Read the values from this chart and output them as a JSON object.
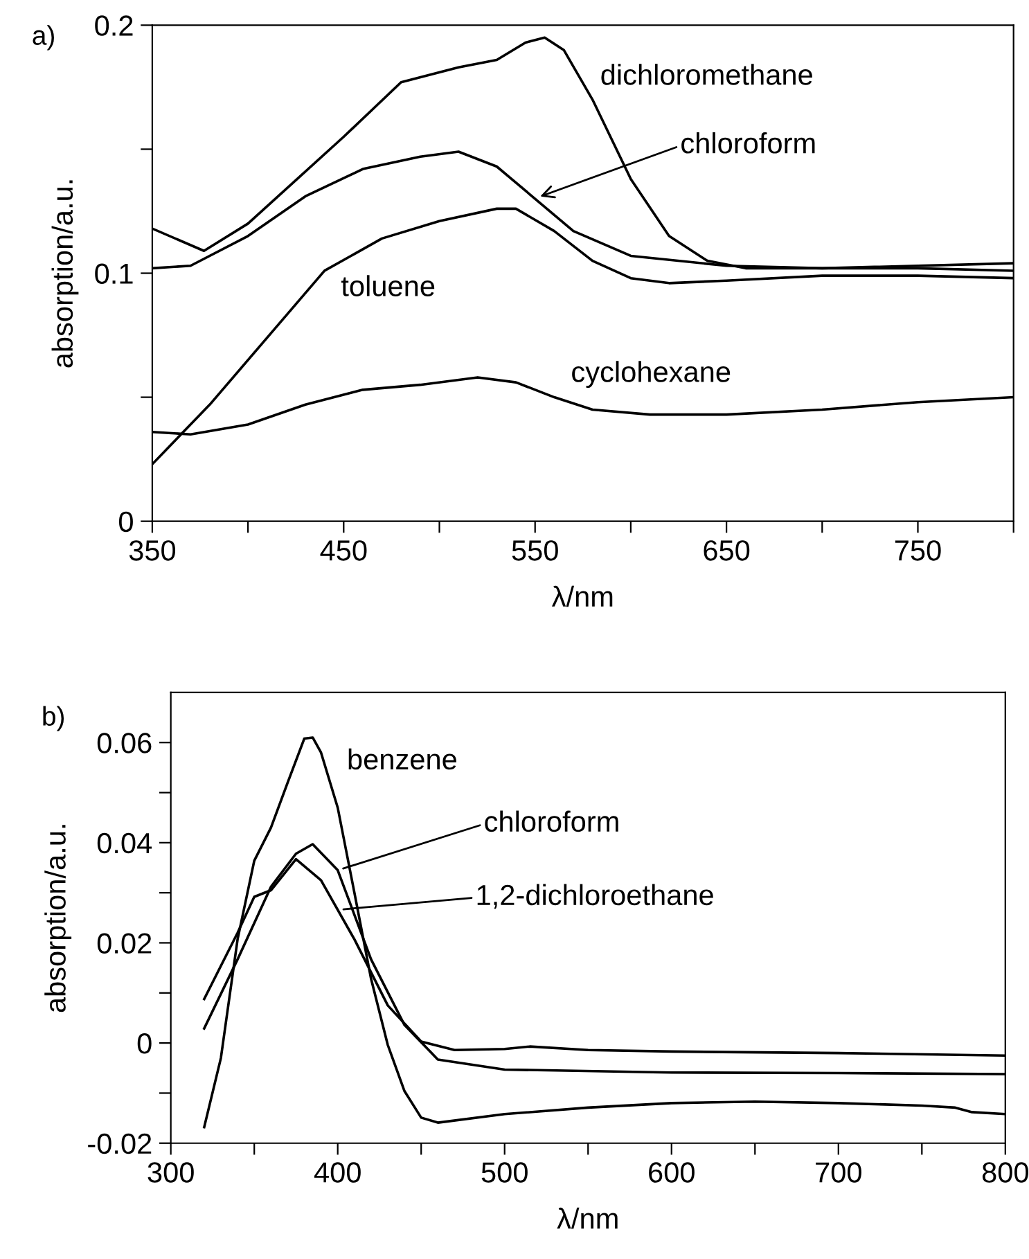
{
  "chart_data": [
    {
      "type": "line",
      "xlabel": "λ/nm",
      "ylabel": "absorption/a.u.",
      "xlim": [
        350,
        800
      ],
      "ylim": [
        0,
        0.2
      ],
      "xticks": [
        350,
        {
          "value": 400,
          "label": null
        },
        450,
        {
          "value": 500,
          "label": null
        },
        550,
        {
          "value": 600,
          "label": null
        },
        650,
        {
          "value": 700,
          "label": null
        },
        750,
        {
          "value": 800,
          "label": null
        }
      ],
      "yticks": [
        0,
        {
          "value": 0.05,
          "label": null
        },
        0.1,
        {
          "value": 0.15,
          "label": null
        },
        0.2
      ],
      "series": [
        {
          "name": "dichloromethane",
          "color": "#000000",
          "x": [
            350,
            377,
            400,
            450,
            480,
            510,
            530,
            545,
            555,
            565,
            580,
            600,
            620,
            640,
            660,
            700,
            750,
            800
          ],
          "values": [
            0.118,
            0.109,
            0.12,
            0.155,
            0.177,
            0.183,
            0.186,
            0.193,
            0.195,
            0.19,
            0.17,
            0.138,
            0.115,
            0.105,
            0.102,
            0.102,
            0.102,
            0.101
          ]
        },
        {
          "name": "chloroform",
          "color": "#000000",
          "x": [
            350,
            370,
            400,
            430,
            460,
            490,
            510,
            530,
            550,
            570,
            600,
            650,
            700,
            800
          ],
          "values": [
            0.102,
            0.103,
            0.115,
            0.131,
            0.142,
            0.147,
            0.149,
            0.143,
            0.13,
            0.117,
            0.107,
            0.103,
            0.102,
            0.104
          ]
        },
        {
          "name": "toluene",
          "color": "#000000",
          "x": [
            350,
            380,
            410,
            440,
            470,
            500,
            530,
            540,
            560,
            580,
            600,
            620,
            650,
            700,
            750,
            800
          ],
          "values": [
            0.023,
            0.047,
            0.074,
            0.101,
            0.114,
            0.121,
            0.126,
            0.126,
            0.117,
            0.105,
            0.098,
            0.096,
            0.097,
            0.099,
            0.099,
            0.098
          ]
        },
        {
          "name": "cyclohexane",
          "color": "#000000",
          "x": [
            350,
            370,
            400,
            430,
            460,
            490,
            520,
            540,
            560,
            580,
            610,
            650,
            700,
            750,
            800
          ],
          "values": [
            0.036,
            0.035,
            0.039,
            0.047,
            0.053,
            0.055,
            0.058,
            0.056,
            0.05,
            0.045,
            0.043,
            0.043,
            0.045,
            0.048,
            0.05
          ]
        }
      ],
      "annotations": [
        "a)"
      ]
    },
    {
      "type": "line",
      "xlabel": "λ/nm",
      "ylabel": "absorption/a.u.",
      "xlim": [
        300,
        800
      ],
      "ylim": [
        -0.02,
        0.07
      ],
      "xticks": [
        300,
        {
          "value": 350,
          "label": null
        },
        400,
        {
          "value": 450,
          "label": null
        },
        500,
        {
          "value": 550,
          "label": null
        },
        600,
        {
          "value": 650,
          "label": null
        },
        700,
        {
          "value": 750,
          "label": null
        },
        800
      ],
      "yticks": [
        -0.02,
        {
          "value": -0.01,
          "label": null
        },
        0,
        {
          "value": 0.01,
          "label": null
        },
        0.02,
        {
          "value": 0.03,
          "label": null
        },
        0.04,
        {
          "value": 0.05,
          "label": null
        },
        0.06
      ],
      "series": [
        {
          "name": "benzene",
          "color": "#000000",
          "x": [
            320,
            330,
            340,
            350,
            360,
            370,
            380,
            385,
            390,
            400,
            410,
            420,
            430,
            440,
            450,
            460,
            500,
            550,
            600,
            650,
            700,
            750,
            770,
            780,
            800
          ],
          "values": [
            -0.0168,
            -0.003,
            0.0207,
            0.0364,
            0.043,
            0.052,
            0.0608,
            0.061,
            0.058,
            0.047,
            0.03,
            0.0128,
            -0.0004,
            -0.0096,
            -0.0149,
            -0.0159,
            -0.0142,
            -0.0129,
            -0.012,
            -0.0117,
            -0.012,
            -0.0125,
            -0.0129,
            -0.0138,
            -0.0142
          ]
        },
        {
          "name": "chloroform",
          "color": "#000000",
          "x": [
            320,
            340,
            360,
            375,
            385,
            400,
            420,
            440,
            460,
            500,
            600,
            700,
            800
          ],
          "values": [
            0.0029,
            0.0167,
            0.0312,
            0.0378,
            0.0397,
            0.0345,
            0.0167,
            0.0036,
            -0.0033,
            -0.0053,
            -0.0059,
            -0.006,
            -0.0062
          ]
        },
        {
          "name": "1,2-dichloroethane",
          "color": "#000000",
          "x": [
            320,
            340,
            350,
            360,
            375,
            390,
            410,
            430,
            450,
            470,
            500,
            515,
            550,
            600,
            700,
            800
          ],
          "values": [
            0.0088,
            0.022,
            0.0292,
            0.0305,
            0.0367,
            0.0325,
            0.0207,
            0.0075,
            0.0003,
            -0.0014,
            -0.0012,
            -0.0007,
            -0.0014,
            -0.0017,
            -0.002,
            -0.0025
          ]
        }
      ],
      "annotations": [
        "b)"
      ]
    }
  ]
}
